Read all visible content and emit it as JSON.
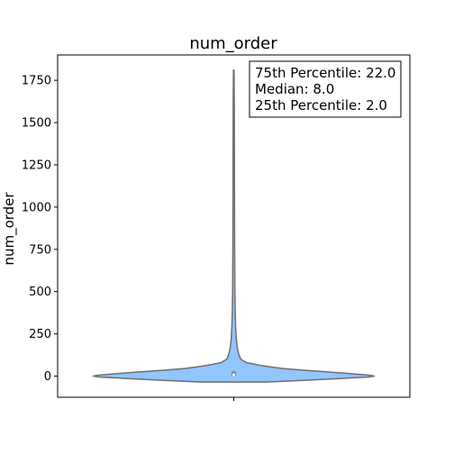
{
  "chart_data": {
    "type": "violin",
    "title": "num_order",
    "xlabel": "",
    "ylabel": "num_order",
    "ylim": [
      -125,
      1900
    ],
    "yticks": [
      0,
      250,
      500,
      750,
      1000,
      1250,
      1500,
      1750
    ],
    "ytick_labels": [
      "0",
      "250",
      "500",
      "750",
      "1000",
      "1250",
      "1500",
      "1750"
    ],
    "grid": false,
    "series": [
      {
        "color": "#92c6ff",
        "edge_color": "#6e6e6e",
        "min": -35,
        "max": 1810,
        "quartiles": {
          "q1": 2.0,
          "median": 8.0,
          "q3": 22.0
        },
        "density_profile": [
          [
            -35,
            0.23
          ],
          [
            -25,
            0.5
          ],
          [
            -15,
            0.74
          ],
          [
            -5,
            0.96
          ],
          [
            0,
            1.0
          ],
          [
            5,
            0.97
          ],
          [
            15,
            0.83
          ],
          [
            25,
            0.67
          ],
          [
            35,
            0.5
          ],
          [
            45,
            0.35
          ],
          [
            55,
            0.26
          ],
          [
            65,
            0.18
          ],
          [
            80,
            0.09
          ],
          [
            100,
            0.05
          ],
          [
            130,
            0.035
          ],
          [
            170,
            0.025
          ],
          [
            220,
            0.018
          ],
          [
            300,
            0.013
          ],
          [
            400,
            0.01
          ],
          [
            500,
            0.008
          ],
          [
            800,
            0.006
          ],
          [
            1200,
            0.005
          ],
          [
            1600,
            0.004
          ],
          [
            1810,
            0.002
          ]
        ]
      }
    ],
    "annotation": {
      "lines": [
        "75th Percentile: 22.0",
        "Median: 8.0",
        "25th Percentile: 2.0"
      ],
      "placement": "top-right"
    }
  }
}
